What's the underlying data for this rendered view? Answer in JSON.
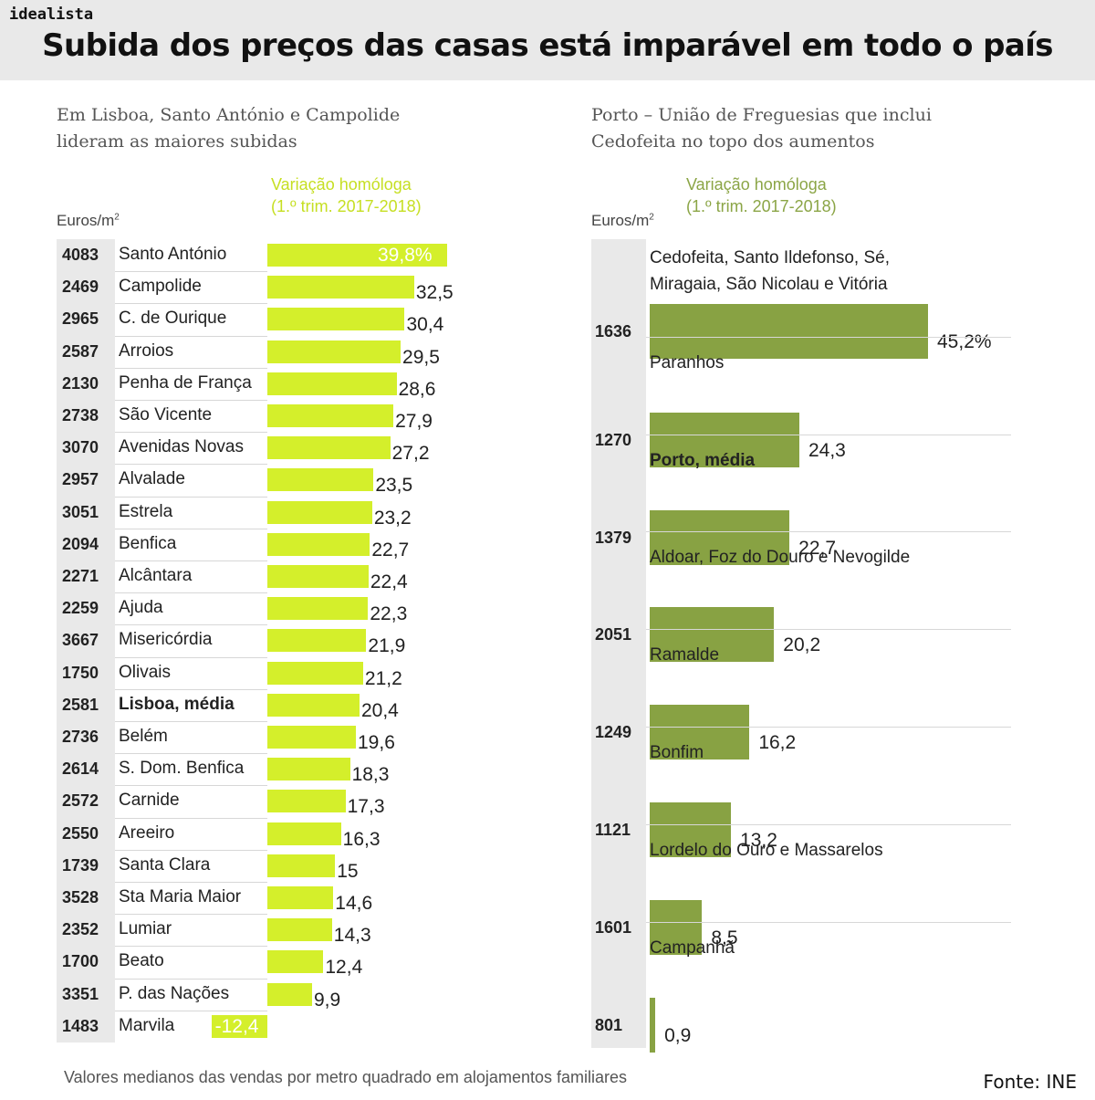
{
  "brand": "idealista",
  "title": "Subida dos preços das casas está imparável em todo o país",
  "footnote": "Valores medianos das vendas por metro quadrado em alojamentos familiares",
  "source": "Fonte: INE",
  "colors": {
    "lisboa_bar": "#d4ef2b",
    "porto_bar": "#88a243",
    "price_bg": "#e9e9e9"
  },
  "chart_data": [
    {
      "type": "bar",
      "orientation": "horizontal",
      "title_lines": [
        "Em Lisboa, Santo António e Campolide",
        "lideram as maiores subidas"
      ],
      "variation_label_lines": [
        "Variação homóloga",
        "(1.º trim. 2017-2018)"
      ],
      "units_label": "Euros/m",
      "units_sup": "2",
      "value_suffix_first": "%",
      "categories": [
        "Santo António",
        "Campolide",
        "C. de Ourique",
        "Arroios",
        "Penha de França",
        "São Vicente",
        "Avenidas Novas",
        "Alvalade",
        "Estrela",
        "Benfica",
        "Alcântara",
        "Ajuda",
        "Misericórdia",
        "Olivais",
        "Lisboa, média",
        "Belém",
        "S. Dom. Benfica",
        "Carnide",
        "Areeiro",
        "Santa Clara",
        "Sta Maria Maior",
        "Lumiar",
        "Beato",
        "P. das Nações",
        "Marvila"
      ],
      "prices": [
        "4083",
        "2469",
        "2965",
        "2587",
        "2130",
        "2738",
        "3070",
        "2957",
        "3051",
        "2094",
        "2271",
        "2259",
        "3667",
        "1750",
        "2581",
        "2736",
        "2614",
        "2572",
        "2550",
        "1739",
        "3528",
        "2352",
        "1700",
        "3351",
        "1483"
      ],
      "values": [
        39.8,
        32.5,
        30.4,
        29.5,
        28.6,
        27.9,
        27.2,
        23.5,
        23.2,
        22.7,
        22.4,
        22.3,
        21.9,
        21.2,
        20.4,
        19.6,
        18.3,
        17.3,
        16.3,
        15,
        14.6,
        14.3,
        12.4,
        9.9,
        -12.4
      ],
      "value_labels": [
        "39,8%",
        "32,5",
        "30,4",
        "29,5",
        "28,6",
        "27,9",
        "27,2",
        "23,5",
        "23,2",
        "22,7",
        "22,4",
        "22,3",
        "21,9",
        "21,2",
        "20,4",
        "19,6",
        "18,3",
        "17,3",
        "16,3",
        "15",
        "14,6",
        "14,3",
        "12,4",
        "9,9",
        "-12,4"
      ],
      "highlight": "Lisboa, média"
    },
    {
      "type": "bar",
      "orientation": "horizontal",
      "title_lines": [
        "Porto – União de Freguesias que inclui",
        "Cedofeita no topo dos aumentos"
      ],
      "variation_label_lines": [
        "Variação homóloga",
        "(1.º trim. 2017-2018)"
      ],
      "units_label": "Euros/m",
      "units_sup": "2",
      "categories": [
        [
          "Cedofeita, Santo Ildefonso, Sé,",
          "Miragaia, São Nicolau e Vitória"
        ],
        [
          "Paranhos"
        ],
        [
          "Porto, média"
        ],
        [
          "Aldoar, Foz do Douro e Nevogilde"
        ],
        [
          "Ramalde"
        ],
        [
          "Bonfim"
        ],
        [
          "Lordelo do Ouro e Massarelos"
        ],
        [
          "Campanhã"
        ]
      ],
      "prices": [
        "1636",
        "1270",
        "1379",
        "2051",
        "1249",
        "1121",
        "1601",
        "801"
      ],
      "values": [
        45.2,
        24.3,
        22.7,
        20.2,
        16.2,
        13.2,
        8.5,
        0.9
      ],
      "value_labels": [
        "45,2%",
        "24,3",
        "22,7",
        "20,2",
        "16,2",
        "13,2",
        "8,5",
        "0,9"
      ],
      "highlight": "Porto, média"
    }
  ]
}
